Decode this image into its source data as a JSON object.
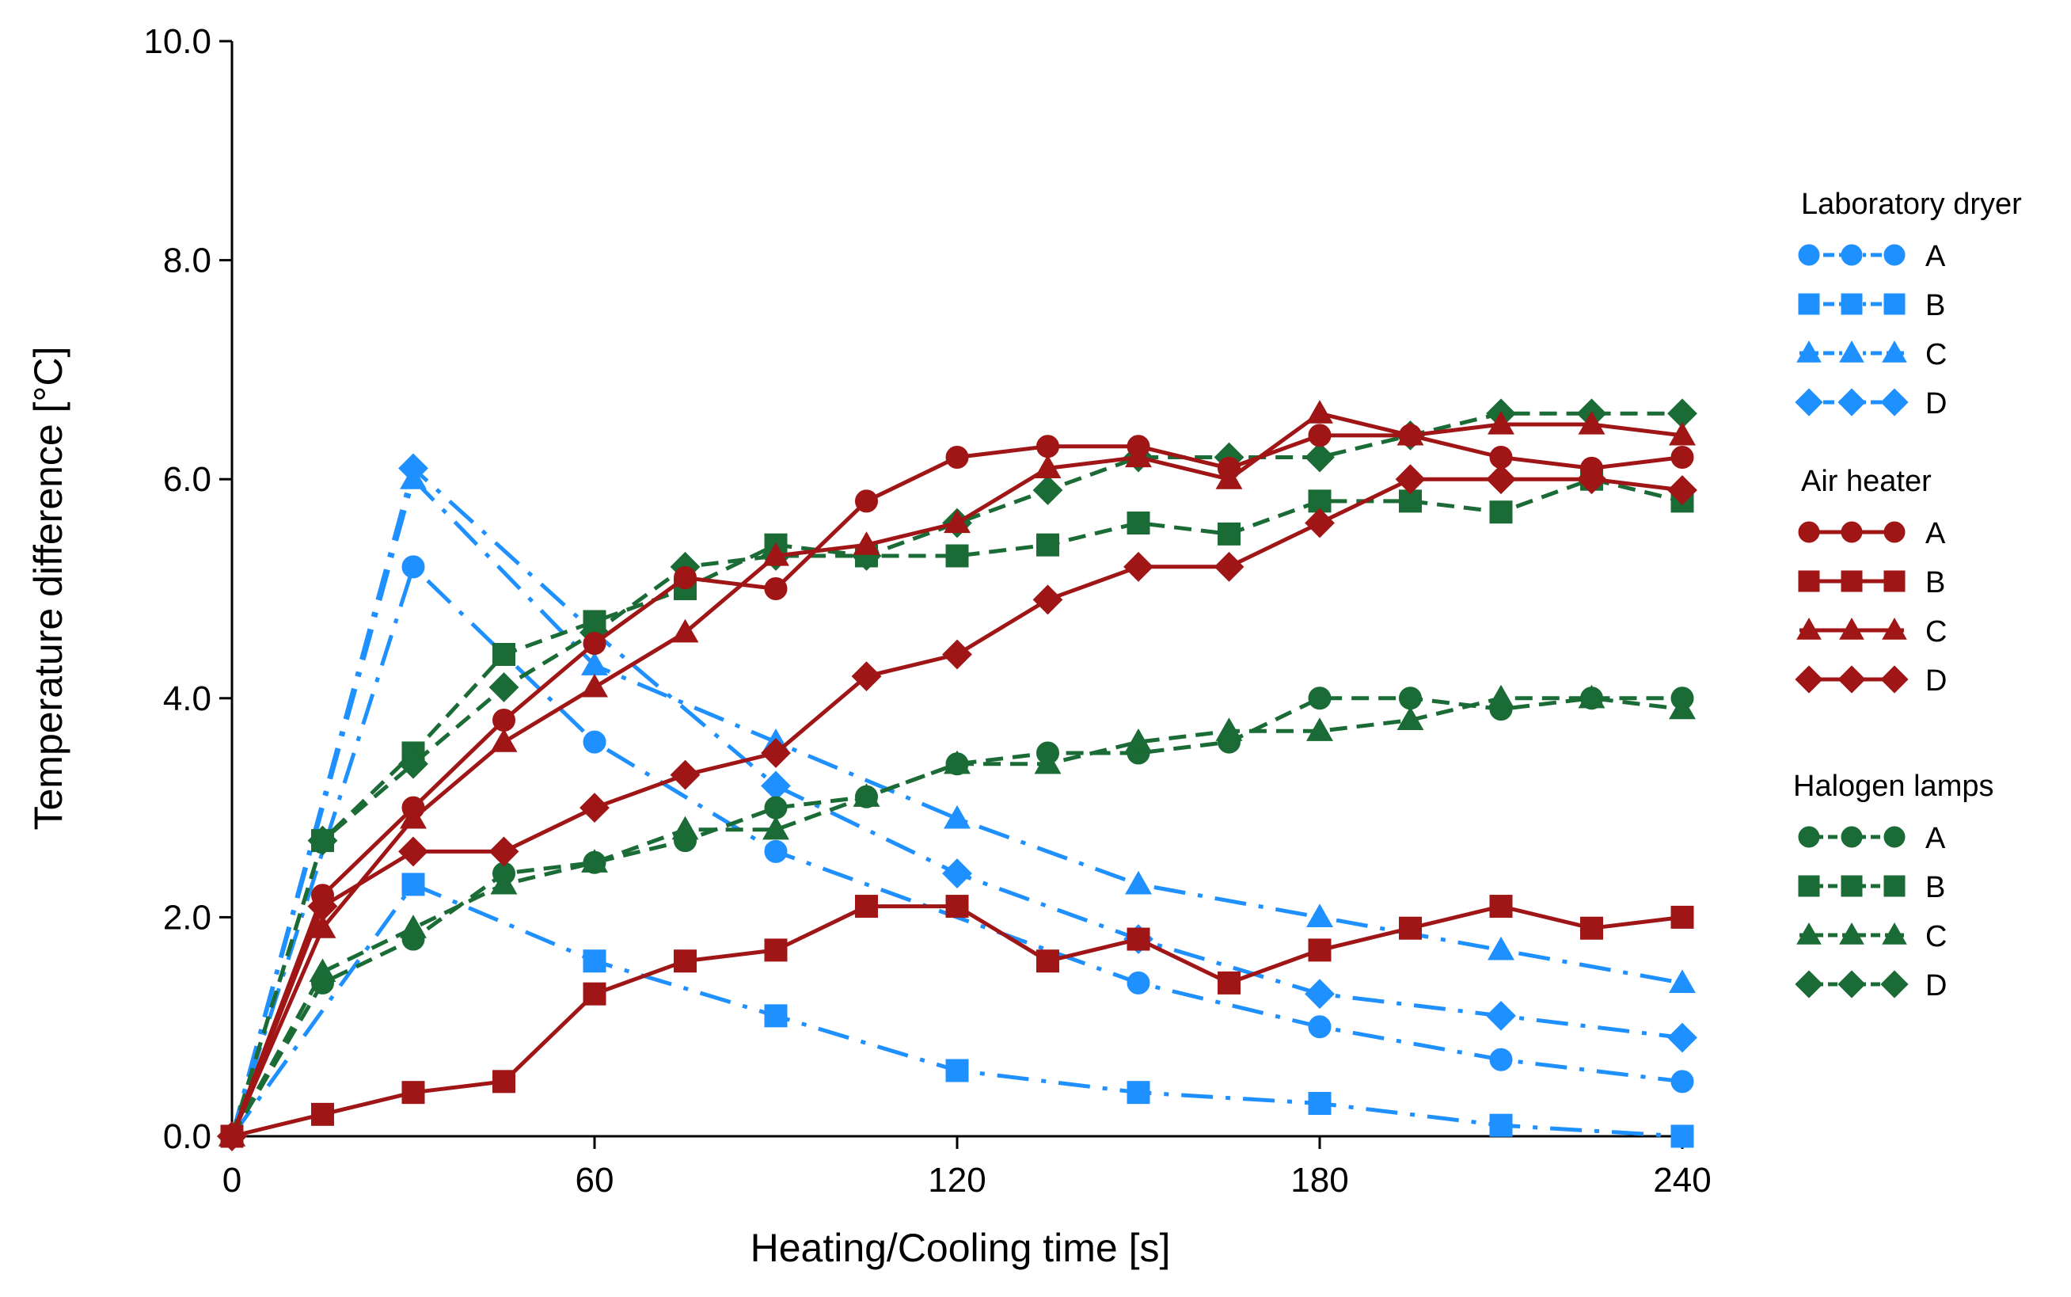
{
  "chart_data": {
    "type": "line",
    "xlabel": "Heating/Cooling time [s]",
    "ylabel": "Temperature difference [°C]",
    "xlim": [
      0,
      240
    ],
    "ylim": [
      0,
      10
    ],
    "xticks": [
      0,
      60,
      120,
      180,
      240
    ],
    "xtick_labels": [
      "0",
      "60",
      "120",
      "180",
      "240"
    ],
    "yticks": [
      0,
      2,
      4,
      6,
      8,
      10
    ],
    "ytick_labels": [
      "0.0",
      "2.0",
      "4.0",
      "6.0",
      "8.0",
      "10.0"
    ],
    "legend_position": "right",
    "groups": [
      {
        "name": "Laboratory dryer",
        "color": "#1E90FF",
        "line_style": "dashdot",
        "series": [
          {
            "label": "A",
            "marker": "circle",
            "points": [
              [
                0,
                0
              ],
              [
                30,
                5.2
              ],
              [
                60,
                3.6
              ],
              [
                90,
                2.6
              ],
              [
                150,
                1.4
              ],
              [
                180,
                1.0
              ],
              [
                210,
                0.7
              ],
              [
                240,
                0.5
              ]
            ]
          },
          {
            "label": "B",
            "marker": "square",
            "points": [
              [
                0,
                0
              ],
              [
                30,
                2.3
              ],
              [
                60,
                1.6
              ],
              [
                90,
                1.1
              ],
              [
                120,
                0.6
              ],
              [
                150,
                0.4
              ],
              [
                180,
                0.3
              ],
              [
                210,
                0.1
              ],
              [
                240,
                0.0
              ]
            ]
          },
          {
            "label": "C",
            "marker": "triangle",
            "points": [
              [
                0,
                0
              ],
              [
                30,
                6.0
              ],
              [
                60,
                4.3
              ],
              [
                90,
                3.6
              ],
              [
                120,
                2.9
              ],
              [
                150,
                2.3
              ],
              [
                180,
                2.0
              ],
              [
                210,
                1.7
              ],
              [
                240,
                1.4
              ]
            ]
          },
          {
            "label": "D",
            "marker": "diamond",
            "points": [
              [
                0,
                0
              ],
              [
                30,
                6.1
              ],
              [
                60,
                4.6
              ],
              [
                90,
                3.2
              ],
              [
                120,
                2.4
              ],
              [
                150,
                1.8
              ],
              [
                180,
                1.3
              ],
              [
                210,
                1.1
              ],
              [
                240,
                0.9
              ]
            ]
          }
        ]
      },
      {
        "name": "Air heater",
        "color": "#A01515",
        "line_style": "solid",
        "series": [
          {
            "label": "A",
            "marker": "circle",
            "points": [
              [
                0,
                0
              ],
              [
                15,
                2.2
              ],
              [
                30,
                3.0
              ],
              [
                45,
                3.8
              ],
              [
                60,
                4.5
              ],
              [
                75,
                5.1
              ],
              [
                90,
                5.0
              ],
              [
                105,
                5.8
              ],
              [
                120,
                6.2
              ],
              [
                135,
                6.3
              ],
              [
                150,
                6.3
              ],
              [
                165,
                6.1
              ],
              [
                180,
                6.4
              ],
              [
                195,
                6.4
              ],
              [
                210,
                6.2
              ],
              [
                225,
                6.1
              ],
              [
                240,
                6.2
              ]
            ]
          },
          {
            "label": "B",
            "marker": "square",
            "points": [
              [
                0,
                0
              ],
              [
                15,
                0.2
              ],
              [
                30,
                0.4
              ],
              [
                45,
                0.5
              ],
              [
                60,
                1.3
              ],
              [
                75,
                1.6
              ],
              [
                90,
                1.7
              ],
              [
                105,
                2.1
              ],
              [
                120,
                2.1
              ],
              [
                135,
                1.6
              ],
              [
                150,
                1.8
              ],
              [
                165,
                1.4
              ],
              [
                180,
                1.7
              ],
              [
                195,
                1.9
              ],
              [
                210,
                2.1
              ],
              [
                225,
                1.9
              ],
              [
                240,
                2.0
              ]
            ]
          },
          {
            "label": "C",
            "marker": "triangle",
            "points": [
              [
                0,
                0
              ],
              [
                15,
                1.9
              ],
              [
                30,
                2.9
              ],
              [
                45,
                3.6
              ],
              [
                60,
                4.1
              ],
              [
                75,
                4.6
              ],
              [
                90,
                5.3
              ],
              [
                105,
                5.4
              ],
              [
                120,
                5.6
              ],
              [
                135,
                6.1
              ],
              [
                150,
                6.2
              ],
              [
                165,
                6.0
              ],
              [
                180,
                6.6
              ],
              [
                195,
                6.4
              ],
              [
                210,
                6.5
              ],
              [
                225,
                6.5
              ],
              [
                240,
                6.4
              ]
            ]
          },
          {
            "label": "D",
            "marker": "diamond",
            "points": [
              [
                0,
                0
              ],
              [
                15,
                2.1
              ],
              [
                30,
                2.6
              ],
              [
                45,
                2.6
              ],
              [
                60,
                3.0
              ],
              [
                75,
                3.3
              ],
              [
                90,
                3.5
              ],
              [
                105,
                4.2
              ],
              [
                120,
                4.4
              ],
              [
                135,
                4.9
              ],
              [
                150,
                5.2
              ],
              [
                165,
                5.2
              ],
              [
                180,
                5.6
              ],
              [
                195,
                6.0
              ],
              [
                210,
                6.0
              ],
              [
                225,
                6.0
              ],
              [
                240,
                5.9
              ]
            ]
          }
        ]
      },
      {
        "name": "Halogen lamps",
        "color": "#1A6B35",
        "line_style": "dashed",
        "series": [
          {
            "label": "A",
            "marker": "circle",
            "points": [
              [
                0,
                0
              ],
              [
                15,
                1.4
              ],
              [
                30,
                1.8
              ],
              [
                45,
                2.4
              ],
              [
                60,
                2.5
              ],
              [
                75,
                2.7
              ],
              [
                90,
                3.0
              ],
              [
                105,
                3.1
              ],
              [
                120,
                3.4
              ],
              [
                135,
                3.5
              ],
              [
                150,
                3.5
              ],
              [
                165,
                3.6
              ],
              [
                180,
                4.0
              ],
              [
                195,
                4.0
              ],
              [
                210,
                3.9
              ],
              [
                225,
                4.0
              ],
              [
                240,
                4.0
              ]
            ]
          },
          {
            "label": "B",
            "marker": "square",
            "points": [
              [
                0,
                0
              ],
              [
                15,
                2.7
              ],
              [
                30,
                3.5
              ],
              [
                45,
                4.4
              ],
              [
                60,
                4.7
              ],
              [
                75,
                5.0
              ],
              [
                90,
                5.4
              ],
              [
                105,
                5.3
              ],
              [
                120,
                5.3
              ],
              [
                135,
                5.4
              ],
              [
                150,
                5.6
              ],
              [
                165,
                5.5
              ],
              [
                180,
                5.8
              ],
              [
                195,
                5.8
              ],
              [
                210,
                5.7
              ],
              [
                225,
                6.0
              ],
              [
                240,
                5.8
              ]
            ]
          },
          {
            "label": "C",
            "marker": "triangle",
            "points": [
              [
                0,
                0
              ],
              [
                15,
                1.5
              ],
              [
                30,
                1.9
              ],
              [
                45,
                2.3
              ],
              [
                60,
                2.5
              ],
              [
                75,
                2.8
              ],
              [
                90,
                2.8
              ],
              [
                105,
                3.1
              ],
              [
                120,
                3.4
              ],
              [
                135,
                3.4
              ],
              [
                150,
                3.6
              ],
              [
                165,
                3.7
              ],
              [
                180,
                3.7
              ],
              [
                195,
                3.8
              ],
              [
                210,
                4.0
              ],
              [
                225,
                4.0
              ],
              [
                240,
                3.9
              ]
            ]
          },
          {
            "label": "D",
            "marker": "diamond",
            "points": [
              [
                0,
                0
              ],
              [
                15,
                2.7
              ],
              [
                30,
                3.4
              ],
              [
                45,
                4.1
              ],
              [
                60,
                4.6
              ],
              [
                75,
                5.2
              ],
              [
                90,
                5.3
              ],
              [
                105,
                5.3
              ],
              [
                120,
                5.6
              ],
              [
                135,
                5.9
              ],
              [
                150,
                6.2
              ],
              [
                165,
                6.2
              ],
              [
                180,
                6.2
              ],
              [
                195,
                6.4
              ],
              [
                210,
                6.6
              ],
              [
                225,
                6.6
              ],
              [
                240,
                6.6
              ]
            ]
          }
        ]
      }
    ]
  }
}
